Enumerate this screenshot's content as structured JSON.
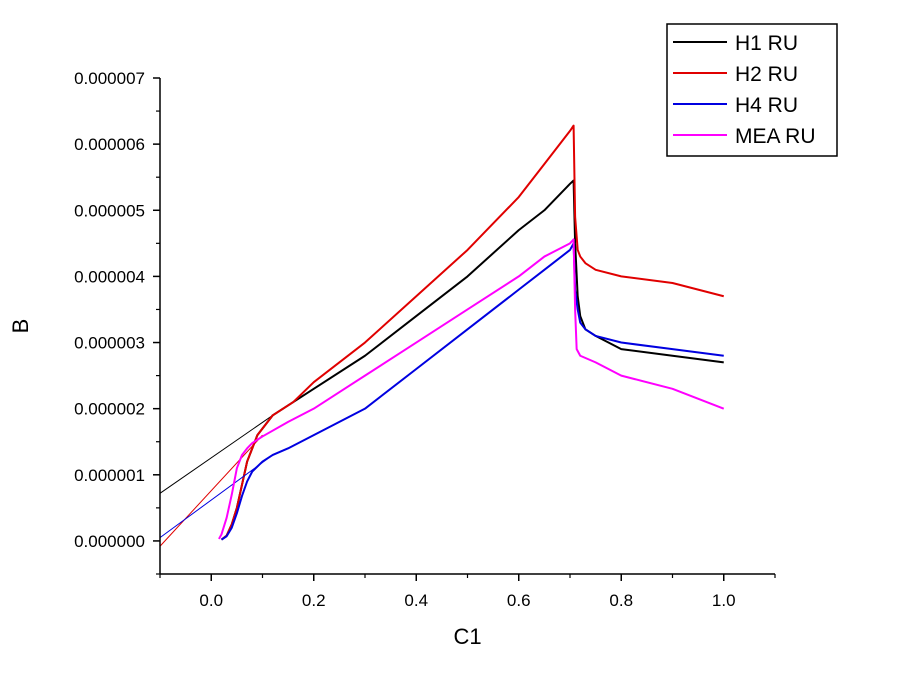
{
  "chart_data": {
    "type": "line",
    "xlabel": "C1",
    "ylabel": "B",
    "xlim": [
      -0.1,
      1.1
    ],
    "ylim": [
      -5e-07,
      7e-06
    ],
    "xticks": [
      0.0,
      0.2,
      0.4,
      0.6,
      0.8,
      1.0
    ],
    "xtick_labels": [
      "0.0",
      "0.2",
      "0.4",
      "0.6",
      "0.8",
      "1.0"
    ],
    "yticks": [
      0.0,
      1e-06,
      2e-06,
      3e-06,
      4e-06,
      5e-06,
      6e-06,
      7e-06
    ],
    "ytick_labels": [
      "0.000000",
      "0.000001",
      "0.000002",
      "0.000003",
      "0.000004",
      "0.000005",
      "0.000006",
      "0.000007"
    ],
    "grid": false,
    "legend": {
      "position": "top-right"
    },
    "series": [
      {
        "name": "H1 RU",
        "color": "#000000",
        "x": [
          0.02,
          0.03,
          0.04,
          0.05,
          0.06,
          0.07,
          0.08,
          0.09,
          0.1,
          0.12,
          0.14,
          0.16,
          0.2,
          0.3,
          0.4,
          0.5,
          0.6,
          0.65,
          0.7,
          0.707,
          0.71,
          0.715,
          0.72,
          0.73,
          0.75,
          0.8,
          0.9,
          1.0
        ],
        "y": [
          2e-08,
          8e-08,
          2.5e-07,
          5e-07,
          8.5e-07,
          1.2e-06,
          1.4e-06,
          1.6e-06,
          1.7e-06,
          1.9e-06,
          2e-06,
          2.1e-06,
          2.3e-06,
          2.8e-06,
          3.4e-06,
          4e-06,
          4.7e-06,
          5e-06,
          5.4e-06,
          5.45e-06,
          4.5e-06,
          3.7e-06,
          3.4e-06,
          3.2e-06,
          3.1e-06,
          2.9e-06,
          2.8e-06,
          2.7e-06
        ],
        "extrapolation": {
          "x": [
            -0.1,
            0.12
          ],
          "y": [
            7.2e-07,
            1.9e-06
          ]
        }
      },
      {
        "name": "H2 RU",
        "color": "#e00000",
        "x": [
          0.02,
          0.03,
          0.04,
          0.05,
          0.06,
          0.07,
          0.08,
          0.09,
          0.1,
          0.12,
          0.14,
          0.16,
          0.2,
          0.3,
          0.4,
          0.5,
          0.6,
          0.65,
          0.7,
          0.707,
          0.71,
          0.715,
          0.72,
          0.73,
          0.75,
          0.8,
          0.9,
          1.0
        ],
        "y": [
          2e-08,
          8e-08,
          2.5e-07,
          5e-07,
          8.5e-07,
          1.2e-06,
          1.4e-06,
          1.6e-06,
          1.7e-06,
          1.9e-06,
          2e-06,
          2.1e-06,
          2.4e-06,
          3e-06,
          3.7e-06,
          4.4e-06,
          5.2e-06,
          5.7e-06,
          6.2e-06,
          6.28e-06,
          4.9e-06,
          4.4e-06,
          4.3e-06,
          4.2e-06,
          4.1e-06,
          4e-06,
          3.9e-06,
          3.7e-06
        ],
        "extrapolation": {
          "x": [
            -0.1,
            0.1
          ],
          "y": [
            -8e-08,
            1.6e-06
          ]
        }
      },
      {
        "name": "H4 RU",
        "color": "#0000e0",
        "x": [
          0.02,
          0.03,
          0.04,
          0.05,
          0.06,
          0.07,
          0.08,
          0.1,
          0.12,
          0.15,
          0.2,
          0.3,
          0.4,
          0.5,
          0.6,
          0.65,
          0.7,
          0.707,
          0.71,
          0.715,
          0.72,
          0.73,
          0.75,
          0.8,
          0.9,
          1.0
        ],
        "y": [
          2e-08,
          7e-08,
          2e-07,
          4.2e-07,
          6.8e-07,
          9e-07,
          1.05e-06,
          1.2e-06,
          1.3e-06,
          1.4e-06,
          1.6e-06,
          2e-06,
          2.6e-06,
          3.2e-06,
          3.8e-06,
          4.1e-06,
          4.4e-06,
          4.5e-06,
          3.8e-06,
          3.5e-06,
          3.3e-06,
          3.2e-06,
          3.1e-06,
          3e-06,
          2.9e-06,
          2.8e-06
        ],
        "extrapolation": {
          "x": [
            -0.1,
            0.12
          ],
          "y": [
            5e-08,
            1.3e-06
          ]
        }
      },
      {
        "name": "MEA RU",
        "color": "#ff00ff",
        "x": [
          0.015,
          0.02,
          0.03,
          0.04,
          0.05,
          0.06,
          0.07,
          0.08,
          0.1,
          0.15,
          0.2,
          0.3,
          0.4,
          0.5,
          0.6,
          0.65,
          0.7,
          0.707,
          0.71,
          0.713,
          0.72,
          0.75,
          0.8,
          0.9,
          1.0
        ],
        "y": [
          3e-08,
          1e-07,
          3.5e-07,
          7e-07,
          1.1e-06,
          1.3e-06,
          1.4e-06,
          1.48e-06,
          1.58e-06,
          1.8e-06,
          2e-06,
          2.5e-06,
          3e-06,
          3.5e-06,
          4e-06,
          4.3e-06,
          4.5e-06,
          4.56e-06,
          3.5e-06,
          2.9e-06,
          2.8e-06,
          2.7e-06,
          2.5e-06,
          2.3e-06,
          2e-06
        ],
        "extrapolation": null
      }
    ]
  }
}
